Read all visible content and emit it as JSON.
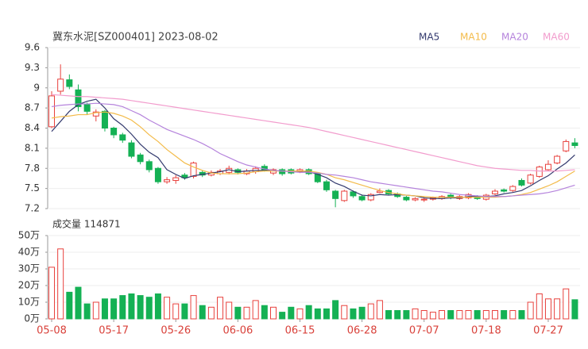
{
  "chart_data": [
    {
      "type": "candlestick",
      "title": "冀东水泥[SZ000401] 2023-08-02",
      "categories": [
        "05-08",
        null,
        null,
        null,
        null,
        null,
        null,
        "05-17",
        null,
        null,
        null,
        null,
        null,
        null,
        "05-26",
        null,
        null,
        null,
        null,
        null,
        null,
        "06-06",
        null,
        null,
        null,
        null,
        null,
        null,
        "06-15",
        null,
        null,
        null,
        null,
        null,
        null,
        "06-28",
        null,
        null,
        null,
        null,
        null,
        null,
        "07-07",
        null,
        null,
        null,
        null,
        null,
        null,
        "07-18",
        null,
        null,
        null,
        null,
        null,
        null,
        "07-27",
        null,
        null,
        null
      ],
      "open": [
        8.42,
        8.95,
        9.12,
        8.97,
        8.75,
        8.58,
        8.65,
        8.4,
        8.3,
        8.18,
        8.0,
        7.9,
        7.8,
        7.6,
        7.62,
        7.7,
        7.68,
        7.74,
        7.7,
        7.72,
        7.74,
        7.78,
        7.72,
        7.75,
        7.83,
        7.73,
        7.78,
        7.78,
        7.75,
        7.78,
        7.72,
        7.6,
        7.46,
        7.32,
        7.45,
        7.38,
        7.33,
        7.44,
        7.47,
        7.42,
        7.37,
        7.33,
        7.33,
        7.34,
        7.35,
        7.4,
        7.35,
        7.36,
        7.38,
        7.34,
        7.42,
        7.48,
        7.47,
        7.62,
        7.58,
        7.68,
        7.78,
        7.88,
        8.06,
        8.18
      ],
      "high": [
        8.95,
        9.35,
        9.2,
        9.05,
        8.78,
        8.68,
        8.67,
        8.42,
        8.33,
        8.22,
        8.03,
        7.93,
        7.82,
        7.67,
        7.7,
        7.73,
        7.9,
        7.77,
        7.77,
        7.79,
        7.84,
        7.8,
        7.79,
        7.83,
        7.86,
        7.8,
        7.8,
        7.8,
        7.8,
        7.8,
        7.74,
        7.63,
        7.48,
        7.48,
        7.47,
        7.41,
        7.43,
        7.5,
        7.49,
        7.44,
        7.39,
        7.37,
        7.37,
        7.38,
        7.4,
        7.42,
        7.4,
        7.43,
        7.4,
        7.42,
        7.49,
        7.5,
        7.55,
        7.65,
        7.72,
        7.84,
        7.92,
        8.0,
        8.23,
        8.25
      ],
      "low": [
        8.4,
        8.9,
        8.98,
        8.65,
        8.6,
        8.5,
        8.35,
        8.25,
        8.18,
        7.95,
        7.86,
        7.74,
        7.57,
        7.57,
        7.57,
        7.63,
        7.65,
        7.67,
        7.68,
        7.7,
        7.71,
        7.71,
        7.7,
        7.72,
        7.75,
        7.7,
        7.69,
        7.71,
        7.73,
        7.7,
        7.58,
        7.45,
        7.22,
        7.3,
        7.36,
        7.31,
        7.31,
        7.43,
        7.4,
        7.36,
        7.31,
        7.31,
        7.3,
        7.32,
        7.33,
        7.34,
        7.33,
        7.34,
        7.33,
        7.32,
        7.4,
        7.44,
        7.45,
        7.53,
        7.56,
        7.66,
        7.76,
        7.86,
        8.04,
        8.1
      ],
      "close": [
        8.88,
        9.13,
        9.02,
        8.72,
        8.65,
        8.64,
        8.4,
        8.3,
        8.22,
        7.98,
        7.9,
        7.78,
        7.6,
        7.63,
        7.66,
        7.66,
        7.88,
        7.7,
        7.74,
        7.76,
        7.8,
        7.74,
        7.76,
        7.8,
        7.77,
        7.78,
        7.72,
        7.73,
        7.78,
        7.72,
        7.6,
        7.48,
        7.35,
        7.46,
        7.39,
        7.33,
        7.41,
        7.46,
        7.42,
        7.38,
        7.33,
        7.35,
        7.34,
        7.36,
        7.38,
        7.36,
        7.38,
        7.41,
        7.35,
        7.4,
        7.46,
        7.46,
        7.53,
        7.55,
        7.7,
        7.82,
        7.86,
        7.98,
        8.2,
        8.14
      ],
      "up_color": "#e8413d",
      "down_color": "#14b154",
      "series": [
        {
          "name": "MA5",
          "color": "#333a6e",
          "values": [
            8.35,
            8.5,
            8.65,
            8.75,
            8.8,
            8.83,
            8.7,
            8.54,
            8.44,
            8.31,
            8.16,
            8.04,
            7.96,
            7.78,
            7.71,
            7.65,
            7.69,
            7.71,
            7.73,
            7.75,
            7.78,
            7.75,
            7.76,
            7.77,
            7.77,
            7.77,
            7.76,
            7.76,
            7.76,
            7.75,
            7.71,
            7.66,
            7.58,
            7.53,
            7.46,
            7.4,
            7.39,
            7.41,
            7.4,
            7.41,
            7.4,
            7.39,
            7.36,
            7.35,
            7.35,
            7.36,
            7.36,
            7.38,
            7.38,
            7.38,
            7.39,
            7.42,
            7.44,
            7.47,
            7.54,
            7.62,
            7.69,
            7.79,
            7.88,
            8.0
          ]
        },
        {
          "name": "MA10",
          "color": "#f3bb4a",
          "values": [
            8.55,
            8.57,
            8.58,
            8.6,
            8.6,
            8.63,
            8.64,
            8.62,
            8.58,
            8.52,
            8.42,
            8.3,
            8.2,
            8.08,
            7.98,
            7.88,
            7.82,
            7.77,
            7.73,
            7.72,
            7.72,
            7.72,
            7.73,
            7.75,
            7.76,
            7.76,
            7.76,
            7.76,
            7.76,
            7.76,
            7.74,
            7.71,
            7.66,
            7.63,
            7.59,
            7.55,
            7.51,
            7.47,
            7.44,
            7.42,
            7.4,
            7.39,
            7.38,
            7.37,
            7.37,
            7.37,
            7.37,
            7.37,
            7.37,
            7.37,
            7.37,
            7.38,
            7.39,
            7.41,
            7.44,
            7.49,
            7.54,
            7.6,
            7.68,
            7.76
          ]
        },
        {
          "name": "MA20",
          "color": "#b583dc",
          "values": [
            8.72,
            8.74,
            8.75,
            8.76,
            8.76,
            8.77,
            8.76,
            8.75,
            8.72,
            8.66,
            8.6,
            8.52,
            8.45,
            8.38,
            8.33,
            8.28,
            8.23,
            8.17,
            8.1,
            8.02,
            7.96,
            7.9,
            7.85,
            7.82,
            7.79,
            7.77,
            7.76,
            7.75,
            7.74,
            7.74,
            7.73,
            7.71,
            7.7,
            7.68,
            7.66,
            7.63,
            7.6,
            7.58,
            7.56,
            7.54,
            7.52,
            7.5,
            7.48,
            7.46,
            7.45,
            7.43,
            7.41,
            7.4,
            7.39,
            7.38,
            7.38,
            7.38,
            7.39,
            7.4,
            7.41,
            7.42,
            7.44,
            7.47,
            7.51,
            7.55
          ]
        },
        {
          "name": "MA60",
          "color": "#f29ccd",
          "values": [
            8.9,
            8.89,
            8.88,
            8.87,
            8.87,
            8.86,
            8.85,
            8.84,
            8.83,
            8.81,
            8.79,
            8.77,
            8.75,
            8.73,
            8.71,
            8.69,
            8.67,
            8.65,
            8.63,
            8.61,
            8.59,
            8.57,
            8.55,
            8.53,
            8.51,
            8.49,
            8.47,
            8.45,
            8.43,
            8.41,
            8.38,
            8.35,
            8.32,
            8.29,
            8.26,
            8.23,
            8.2,
            8.17,
            8.14,
            8.11,
            8.08,
            8.05,
            8.02,
            7.99,
            7.96,
            7.93,
            7.9,
            7.87,
            7.84,
            7.82,
            7.8,
            7.79,
            7.78,
            7.77,
            7.77,
            7.76,
            7.76,
            7.76,
            7.77,
            7.78
          ]
        }
      ],
      "ylim": [
        7.2,
        9.6
      ],
      "yticks": [
        9.6,
        9.3,
        9,
        8.7,
        8.4,
        8.1,
        7.8,
        7.5,
        7.2
      ]
    },
    {
      "type": "bar",
      "title": "成交量 114871",
      "values": [
        31,
        42,
        16,
        19,
        9,
        10,
        12,
        12,
        14,
        15,
        14,
        13,
        15,
        13,
        9,
        9,
        14,
        8,
        7,
        13,
        10,
        7,
        7,
        11,
        8,
        7,
        4,
        7,
        6,
        8,
        6,
        6,
        11,
        8,
        6,
        7,
        9,
        11,
        5,
        5,
        5,
        6,
        5,
        4,
        5,
        5,
        5,
        5,
        5,
        5,
        5,
        5,
        5,
        5,
        10,
        15,
        12,
        12,
        18,
        11.5
      ],
      "ylim": [
        0,
        50
      ],
      "yticks": [
        {
          "value": 50,
          "label": "50万"
        },
        {
          "value": 40,
          "label": "40万"
        },
        {
          "value": 30,
          "label": "30万"
        },
        {
          "value": 20,
          "label": "20万"
        },
        {
          "value": 10,
          "label": "10万"
        },
        {
          "value": 0,
          "label": "0万"
        }
      ]
    }
  ]
}
